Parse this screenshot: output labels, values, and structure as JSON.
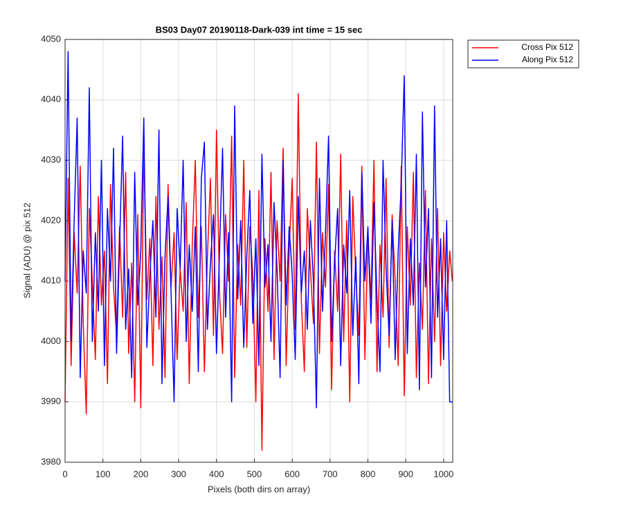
{
  "chart_data": {
    "type": "line",
    "title": "BS03 Day07 20190118-Dark-039 int time = 15 sec",
    "x_label": "Pixels (both dirs on array)",
    "y_label": "Signal (ADU) @ pix 512",
    "x": [
      0,
      8,
      16,
      24,
      32,
      40,
      48,
      56,
      64,
      72,
      80,
      88,
      96,
      104,
      112,
      120,
      128,
      136,
      144,
      152,
      160,
      168,
      176,
      184,
      192,
      200,
      208,
      216,
      224,
      232,
      240,
      248,
      256,
      264,
      272,
      280,
      288,
      296,
      304,
      312,
      320,
      328,
      336,
      344,
      352,
      360,
      368,
      376,
      384,
      392,
      400,
      408,
      416,
      424,
      432,
      440,
      448,
      456,
      464,
      472,
      480,
      488,
      496,
      504,
      512,
      520,
      528,
      536,
      544,
      552,
      560,
      568,
      576,
      584,
      592,
      600,
      608,
      616,
      624,
      632,
      640,
      648,
      656,
      664,
      672,
      680,
      688,
      696,
      704,
      712,
      720,
      728,
      736,
      744,
      752,
      760,
      768,
      776,
      784,
      792,
      800,
      808,
      816,
      824,
      832,
      840,
      848,
      856,
      864,
      872,
      880,
      888,
      896,
      904,
      912,
      920,
      928,
      936,
      944,
      952,
      960,
      968,
      976,
      984,
      992,
      1000,
      1008,
      1016,
      1023
    ],
    "series": [
      {
        "name": "Cross Pix 512",
        "color": "#ff0000",
        "values": [
          3990,
          4027,
          3996,
          4018,
          4008,
          4029,
          4003,
          3988,
          4022,
          4010,
          3997,
          4024,
          4006,
          4015,
          3993,
          4026,
          4009,
          4001,
          4019,
          4004,
          4028,
          3998,
          4013,
          3990,
          4021,
          3989,
          4033,
          4007,
          4017,
          3996,
          4024,
          4002,
          4014,
          3994,
          4026,
          4009,
          4018,
          3997,
          4012,
          4005,
          4023,
          3993,
          4016,
          4030,
          4004,
          4019,
          3995,
          4014,
          4027,
          4001,
          4035,
          4008,
          3998,
          4021,
          4010,
          4034,
          3994,
          4016,
          4006,
          4030,
          3999,
          4019,
          4011,
          3990,
          4025,
          3982,
          4017,
          4005,
          4028,
          3997,
          4020,
          4010,
          4032,
          3996,
          4015,
          4027,
          4002,
          4041,
          4007,
          3995,
          4022,
          4012,
          4003,
          4033,
          3998,
          4018,
          4009,
          4026,
          3992,
          4015,
          4005,
          4031,
          4000,
          4020,
          3990,
          4024,
          4011,
          4001,
          4029,
          3997,
          4018,
          4007,
          4030,
          3995,
          4016,
          4004,
          4027,
          3999,
          4021,
          4010,
          3996,
          4029,
          3991,
          4019,
          4006,
          4028,
          3994,
          4013,
          4002,
          4025,
          3993,
          4017,
          4000,
          4022,
          3996,
          4018,
          4005,
          4015,
          4010
        ]
      },
      {
        "name": "Along Pix 512",
        "color": "#0000ff",
        "values": [
          4010,
          4048,
          4000,
          4020,
          4037,
          3994,
          4015,
          4008,
          4042,
          4000,
          4018,
          4005,
          4030,
          3996,
          4022,
          4010,
          4032,
          3998,
          4016,
          4034,
          4002,
          4012,
          3994,
          4028,
          4006,
          4015,
          4037,
          3999,
          4011,
          4020,
          4004,
          4035,
          3993,
          4014,
          4024,
          4008,
          3990,
          4022,
          4012,
          4030,
          4000,
          4016,
          4005,
          4019,
          3995,
          4027,
          4033,
          4002,
          4013,
          4021,
          3998,
          4015,
          4032,
          4004,
          4018,
          3990,
          4039,
          4007,
          4020,
          3999,
          4014,
          4025,
          4003,
          4017,
          3996,
          4031,
          4009,
          4016,
          4000,
          4023,
          4012,
          3994,
          4030,
          4006,
          4019,
          4011,
          3997,
          4024,
          4008,
          4015,
          4002,
          4020,
          4010,
          3989,
          4027,
          4005,
          4018,
          4034,
          4000,
          4013,
          4022,
          3996,
          4016,
          4008,
          4025,
          4001,
          4014,
          3993,
          4028,
          4010,
          4019,
          4003,
          4023,
          4007,
          3995,
          4030,
          4012,
          4001,
          4020,
          3997,
          4015,
          4026,
          4044,
          3998,
          4017,
          4006,
          4031,
          3992,
          4038,
          4009,
          4022,
          3994,
          4039,
          4004,
          4017,
          3997,
          4020,
          3990,
          3990
        ]
      }
    ],
    "xlim": [
      0,
      1024
    ],
    "ylim": [
      3980,
      4050
    ],
    "xticks": [
      0,
      100,
      200,
      300,
      400,
      500,
      600,
      700,
      800,
      900,
      1000
    ],
    "yticks": [
      3980,
      3990,
      4000,
      4010,
      4020,
      4030,
      4040,
      4050
    ],
    "grid": true,
    "legend": "outside-right"
  }
}
